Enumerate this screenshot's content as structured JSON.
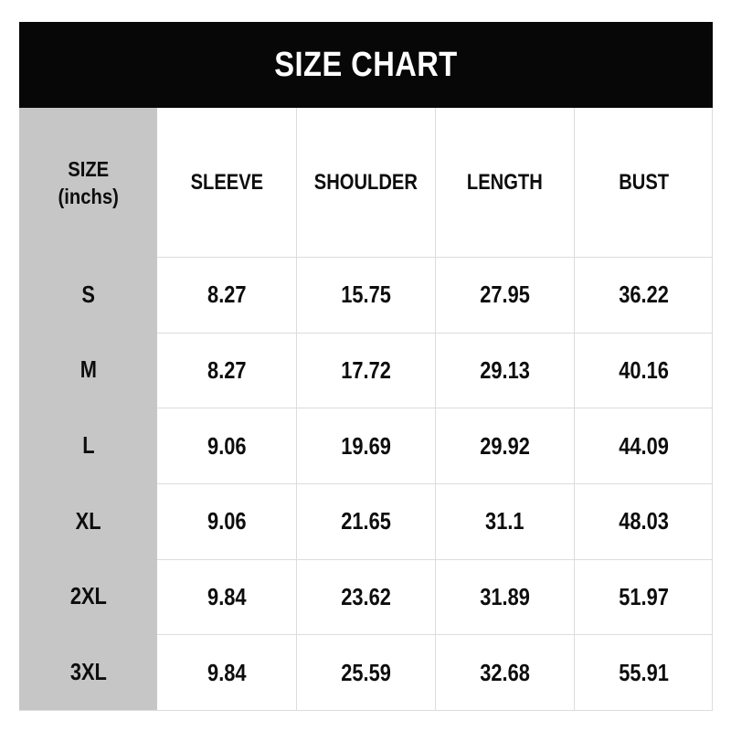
{
  "banner": {
    "title": "SIZE CHART",
    "bg_color": "#070707",
    "text_color": "#ffffff"
  },
  "table": {
    "size_header_line1": "SIZE",
    "size_header_line2": "(inchs)",
    "columns": [
      "SLEEVE",
      "SHOULDER",
      "LENGTH",
      "BUST"
    ],
    "rows": [
      {
        "size": "S",
        "values": [
          "8.27",
          "15.75",
          "27.95",
          "36.22"
        ]
      },
      {
        "size": "M",
        "values": [
          "8.27",
          "17.72",
          "29.13",
          "40.16"
        ]
      },
      {
        "size": "L",
        "values": [
          "9.06",
          "19.69",
          "29.92",
          "44.09"
        ]
      },
      {
        "size": "XL",
        "values": [
          "9.06",
          "21.65",
          "31.1",
          "48.03"
        ]
      },
      {
        "size": "2XL",
        "values": [
          "9.84",
          "23.62",
          "31.89",
          "51.97"
        ]
      },
      {
        "size": "3XL",
        "values": [
          "9.84",
          "25.59",
          "32.68",
          "55.91"
        ]
      }
    ],
    "colors": {
      "size_column_bg": "#c6c6c6",
      "grid_line": "#dcdcdc",
      "cell_bg": "#ffffff",
      "text": "#0d0d0d"
    }
  },
  "chart_data": {
    "type": "table",
    "title": "SIZE CHART",
    "unit": "inchs",
    "columns": [
      "SIZE (inchs)",
      "SLEEVE",
      "SHOULDER",
      "LENGTH",
      "BUST"
    ],
    "rows": [
      [
        "S",
        8.27,
        15.75,
        27.95,
        36.22
      ],
      [
        "M",
        8.27,
        17.72,
        29.13,
        40.16
      ],
      [
        "L",
        9.06,
        19.69,
        29.92,
        44.09
      ],
      [
        "XL",
        9.06,
        21.65,
        31.1,
        48.03
      ],
      [
        "2XL",
        9.84,
        23.62,
        31.89,
        51.97
      ],
      [
        "3XL",
        9.84,
        25.59,
        32.68,
        55.91
      ]
    ]
  }
}
